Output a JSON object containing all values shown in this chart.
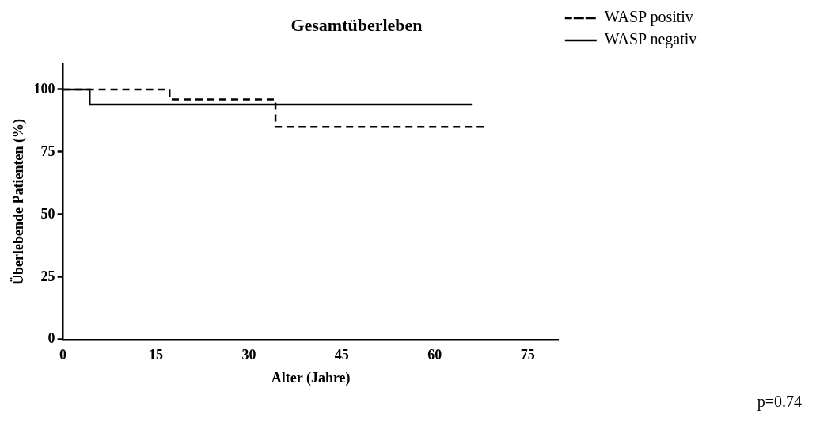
{
  "chart_data": {
    "type": "step",
    "title": "Gesamtüberleben",
    "xlabel": "Alter (Jahre)",
    "ylabel": "Überlebende Patienten (%)",
    "series": [
      {
        "name": "WASP positiv",
        "color": "#000000",
        "line_style": "dashed",
        "x": [
          0,
          17.2,
          17.2,
          34.3,
          34.3,
          68
        ],
        "values": [
          100,
          100,
          96,
          96,
          85,
          85
        ]
      },
      {
        "name": "WASP negativ",
        "color": "#000000",
        "line_style": "solid",
        "x": [
          0,
          4.3,
          4.3,
          66
        ],
        "values": [
          100,
          100,
          94,
          94
        ]
      }
    ],
    "xlim": [
      0,
      80
    ],
    "xticks": [
      0,
      15,
      30,
      45,
      60,
      75
    ],
    "ylim": [
      0,
      110
    ],
    "yticks": [
      0,
      25,
      50,
      75,
      100
    ],
    "grid": false,
    "legend": "top right",
    "marker": "none",
    "annotations": [
      "p=0.74"
    ]
  }
}
